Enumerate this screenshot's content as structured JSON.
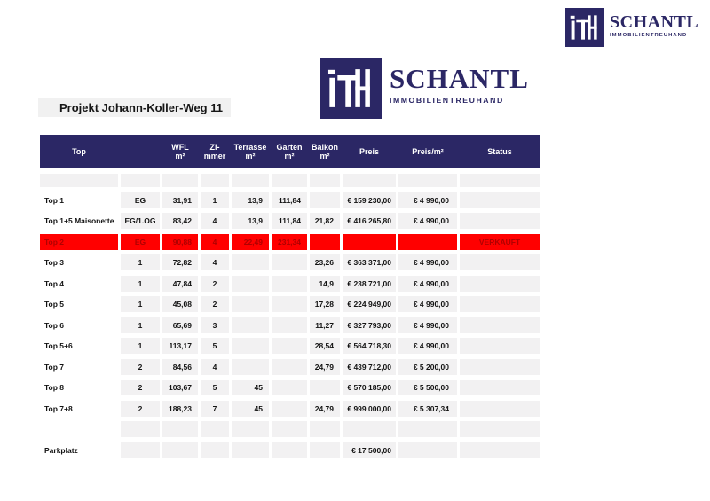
{
  "brand": {
    "mark": "ITH",
    "name": "SCHANTL",
    "tagline": "IMMOBILIENTREUHAND"
  },
  "title": "Projekt Johann-Koller-Weg 11",
  "colors": {
    "navy": "#2b2765",
    "sold_background": "#ff0000",
    "sold_text": "#b00000",
    "cell_gray": "#f2f1f2"
  },
  "table": {
    "columns": [
      {
        "key": "top",
        "label": "Top",
        "sub": ""
      },
      {
        "key": "floor",
        "label": "",
        "sub": ""
      },
      {
        "key": "wfl",
        "label": "WFL",
        "sub": "m²"
      },
      {
        "key": "zimmer",
        "label": "Zi-",
        "sub": "mmer"
      },
      {
        "key": "terrasse",
        "label": "Terrasse",
        "sub": "m²"
      },
      {
        "key": "garten",
        "label": "Garten",
        "sub": "m²"
      },
      {
        "key": "balkon",
        "label": "Balkon",
        "sub": "m²"
      },
      {
        "key": "preis",
        "label": "Preis",
        "sub": ""
      },
      {
        "key": "preis-m2",
        "label": "Preis/m²",
        "sub": ""
      },
      {
        "key": "status",
        "label": "Status",
        "sub": ""
      }
    ],
    "rows": [
      {
        "variant": "spacer-full",
        "cells": [
          "",
          "",
          "",
          "",
          "",
          "",
          "",
          "",
          "",
          ""
        ]
      },
      {
        "variant": "data",
        "cells": [
          "Top 1",
          "EG",
          "31,91",
          "1",
          "13,9",
          "111,84",
          "",
          "€ 159 230,00",
          "€ 4 990,00",
          ""
        ]
      },
      {
        "variant": "data",
        "cells": [
          "Top 1+5 Maisonette",
          "EG/1.OG",
          "83,42",
          "4",
          "13,9",
          "111,84",
          "21,82",
          "€ 416 265,80",
          "€ 4 990,00",
          ""
        ]
      },
      {
        "variant": "sold",
        "cells": [
          "Top 2",
          "EG",
          "90,88",
          "4",
          "22,49",
          "231,34",
          "",
          "",
          "",
          "VERKAUFT"
        ]
      },
      {
        "variant": "data",
        "cells": [
          "Top 3",
          "1",
          "72,82",
          "4",
          "",
          "",
          "23,26",
          "€ 363 371,00",
          "€ 4 990,00",
          ""
        ]
      },
      {
        "variant": "data",
        "cells": [
          "Top 4",
          "1",
          "47,84",
          "2",
          "",
          "",
          "14,9",
          "€ 238 721,00",
          "€ 4 990,00",
          ""
        ]
      },
      {
        "variant": "data",
        "cells": [
          "Top 5",
          "1",
          "45,08",
          "2",
          "",
          "",
          "17,28",
          "€ 224 949,00",
          "€ 4 990,00",
          ""
        ]
      },
      {
        "variant": "data",
        "cells": [
          "Top 6",
          "1",
          "65,69",
          "3",
          "",
          "",
          "11,27",
          "€ 327 793,00",
          "€ 4 990,00",
          ""
        ]
      },
      {
        "variant": "data",
        "cells": [
          "Top 5+6",
          "1",
          "113,17",
          "5",
          "",
          "",
          "28,54",
          "€ 564 718,30",
          "€ 4 990,00",
          ""
        ]
      },
      {
        "variant": "data",
        "cells": [
          "Top 7",
          "2",
          "84,56",
          "4",
          "",
          "",
          "24,79",
          "€ 439 712,00",
          "€ 5 200,00",
          ""
        ]
      },
      {
        "variant": "data",
        "cells": [
          "Top 8",
          "2",
          "103,67",
          "5",
          "45",
          "",
          "",
          "€ 570 185,00",
          "€ 5 500,00",
          ""
        ]
      },
      {
        "variant": "data",
        "cells": [
          "Top 7+8",
          "2",
          "188,23",
          "7",
          "45",
          "",
          "24,79",
          "€ 999 000,00",
          "€ 5 307,34",
          ""
        ]
      },
      {
        "variant": "spacer",
        "cells": [
          "",
          "",
          "",
          "",
          "",
          "",
          "",
          "",
          "",
          ""
        ]
      },
      {
        "variant": "data",
        "cells": [
          "Parkplatz",
          "",
          "",
          "",
          "",
          "",
          "",
          "€ 17 500,00",
          "",
          ""
        ]
      }
    ]
  }
}
